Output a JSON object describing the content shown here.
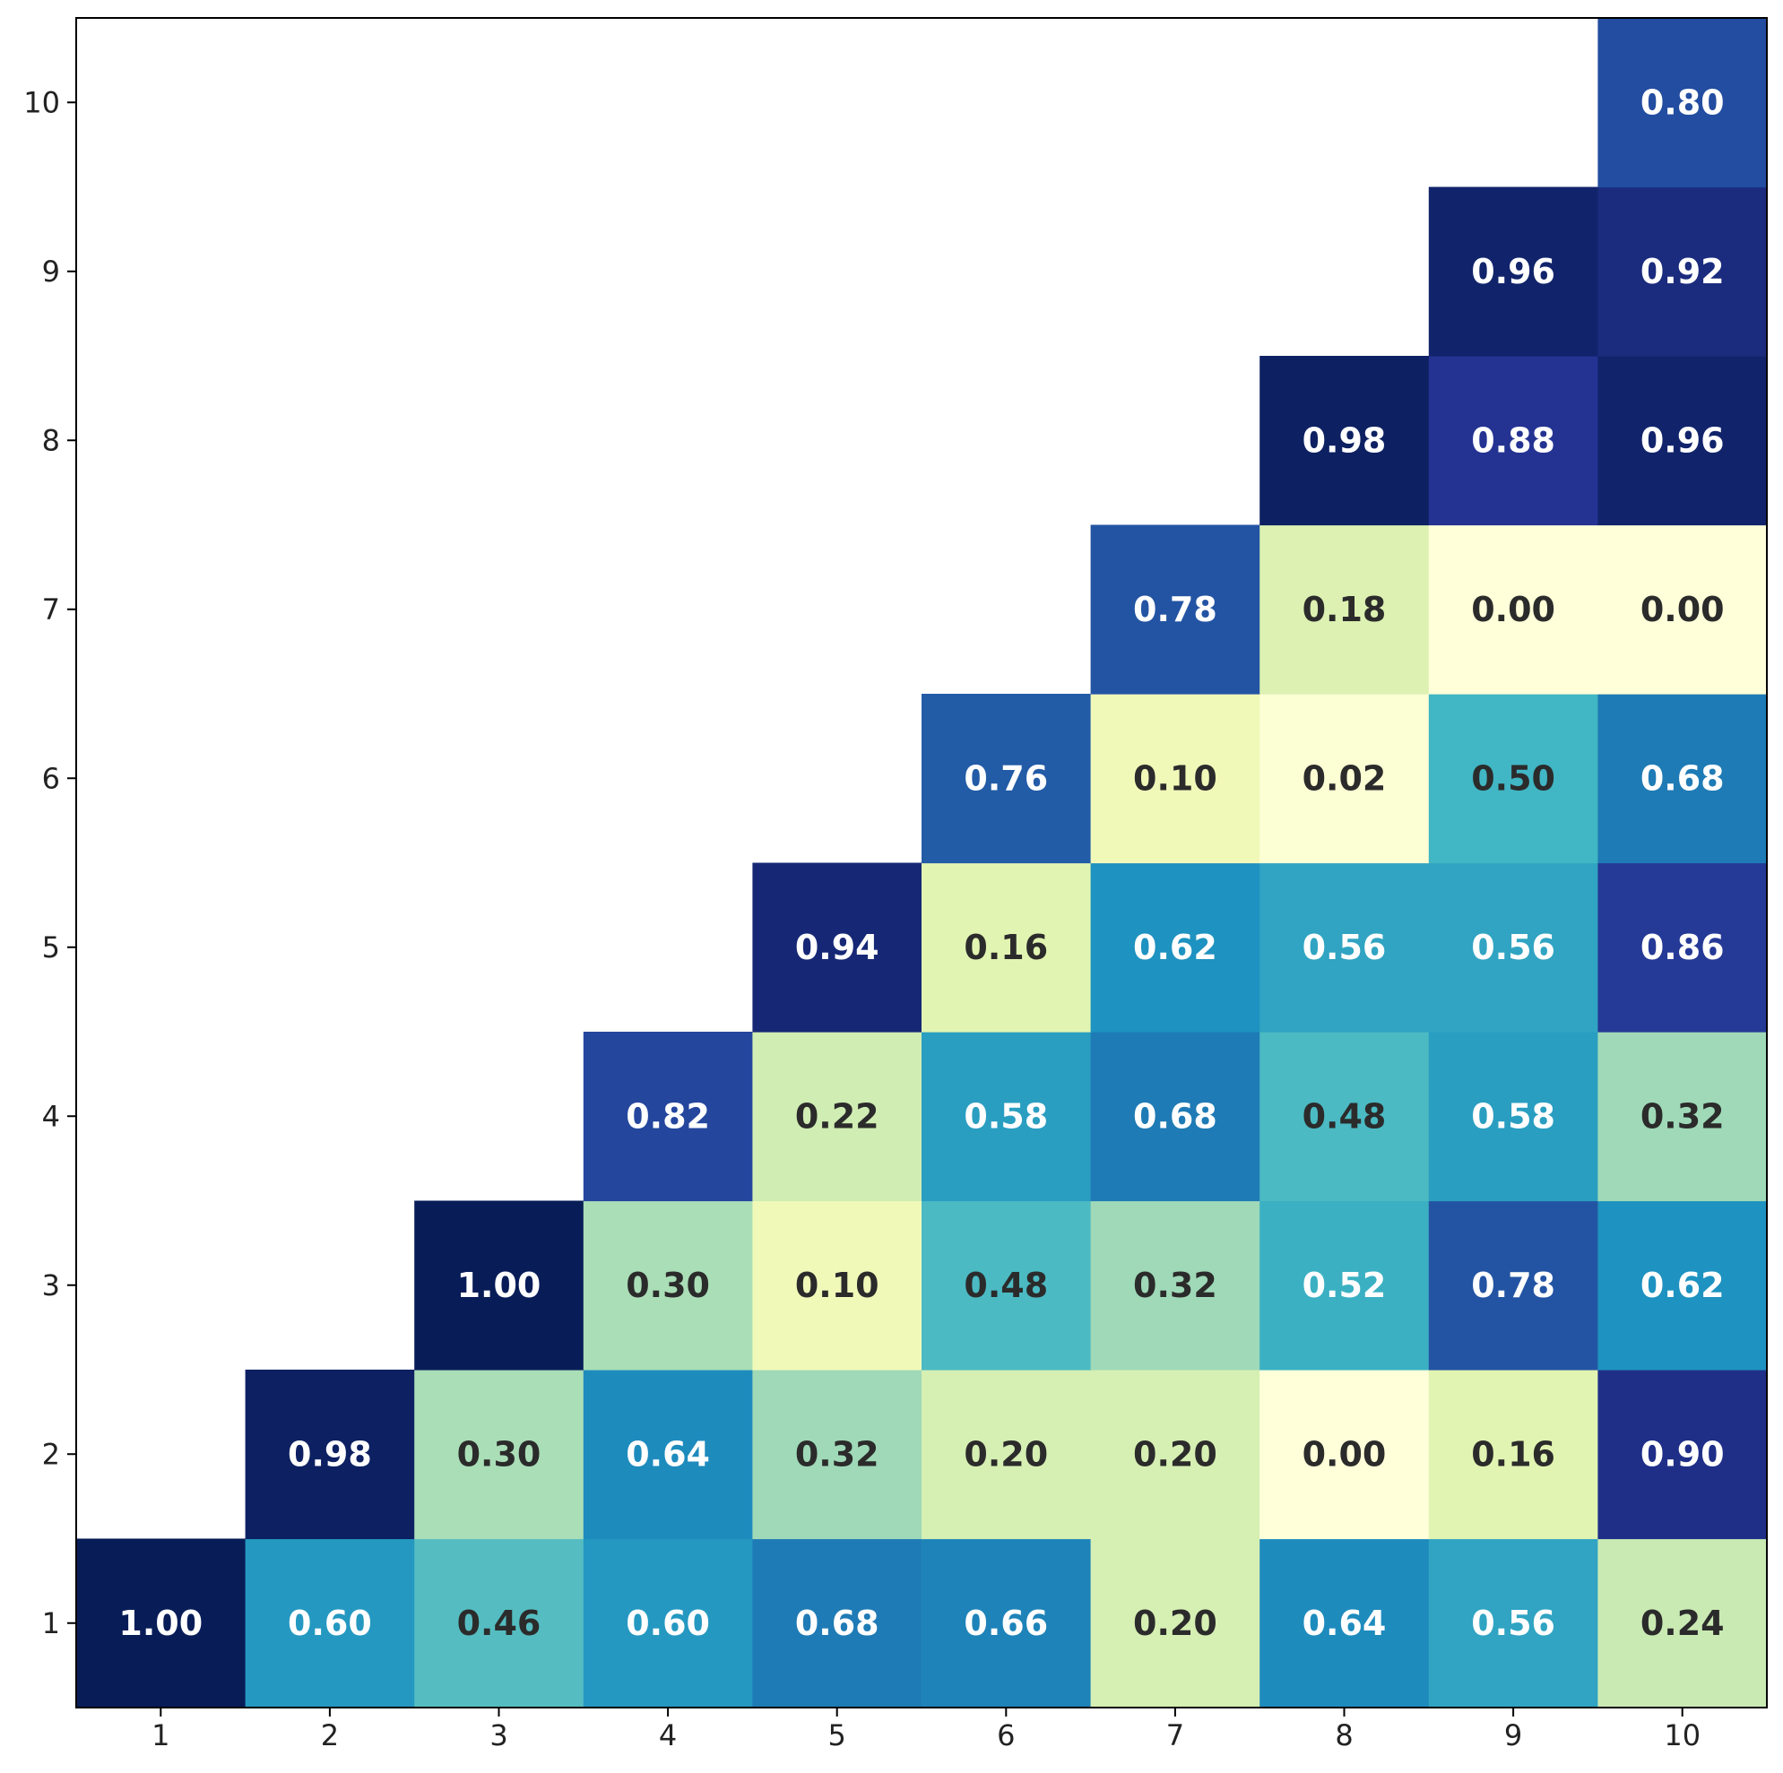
{
  "chart_data": {
    "type": "heatmap",
    "x_ticks": [
      "1",
      "2",
      "3",
      "4",
      "5",
      "6",
      "7",
      "8",
      "9",
      "10"
    ],
    "y_ticks": [
      "1",
      "2",
      "3",
      "4",
      "5",
      "6",
      "7",
      "8",
      "9",
      "10"
    ],
    "xlim": [
      0.5,
      10.5
    ],
    "ylim": [
      0.5,
      10.5
    ],
    "colormap": "YlGnBu",
    "vmin": 0,
    "vmax": 1,
    "grid": false,
    "colors": {
      "dark_text": "#2b2b2b",
      "light_text": "#ffffff",
      "frame": "#000000"
    },
    "cells": [
      {
        "x": 1,
        "y": 1,
        "value": 1.0,
        "label": "1.00"
      },
      {
        "x": 2,
        "y": 1,
        "value": 0.6,
        "label": "0.60"
      },
      {
        "x": 3,
        "y": 1,
        "value": 0.46,
        "label": "0.46"
      },
      {
        "x": 4,
        "y": 1,
        "value": 0.6,
        "label": "0.60"
      },
      {
        "x": 5,
        "y": 1,
        "value": 0.68,
        "label": "0.68"
      },
      {
        "x": 6,
        "y": 1,
        "value": 0.66,
        "label": "0.66"
      },
      {
        "x": 7,
        "y": 1,
        "value": 0.2,
        "label": "0.20"
      },
      {
        "x": 8,
        "y": 1,
        "value": 0.64,
        "label": "0.64"
      },
      {
        "x": 9,
        "y": 1,
        "value": 0.56,
        "label": "0.56"
      },
      {
        "x": 10,
        "y": 1,
        "value": 0.24,
        "label": "0.24"
      },
      {
        "x": 2,
        "y": 2,
        "value": 0.98,
        "label": "0.98"
      },
      {
        "x": 3,
        "y": 2,
        "value": 0.3,
        "label": "0.30"
      },
      {
        "x": 4,
        "y": 2,
        "value": 0.64,
        "label": "0.64"
      },
      {
        "x": 5,
        "y": 2,
        "value": 0.32,
        "label": "0.32"
      },
      {
        "x": 6,
        "y": 2,
        "value": 0.2,
        "label": "0.20"
      },
      {
        "x": 7,
        "y": 2,
        "value": 0.2,
        "label": "0.20"
      },
      {
        "x": 8,
        "y": 2,
        "value": 0.0,
        "label": "0.00"
      },
      {
        "x": 9,
        "y": 2,
        "value": 0.16,
        "label": "0.16"
      },
      {
        "x": 10,
        "y": 2,
        "value": 0.9,
        "label": "0.90"
      },
      {
        "x": 3,
        "y": 3,
        "value": 1.0,
        "label": "1.00"
      },
      {
        "x": 4,
        "y": 3,
        "value": 0.3,
        "label": "0.30"
      },
      {
        "x": 5,
        "y": 3,
        "value": 0.1,
        "label": "0.10"
      },
      {
        "x": 6,
        "y": 3,
        "value": 0.48,
        "label": "0.48"
      },
      {
        "x": 7,
        "y": 3,
        "value": 0.32,
        "label": "0.32"
      },
      {
        "x": 8,
        "y": 3,
        "value": 0.52,
        "label": "0.52"
      },
      {
        "x": 9,
        "y": 3,
        "value": 0.78,
        "label": "0.78"
      },
      {
        "x": 10,
        "y": 3,
        "value": 0.62,
        "label": "0.62"
      },
      {
        "x": 4,
        "y": 4,
        "value": 0.82,
        "label": "0.82"
      },
      {
        "x": 5,
        "y": 4,
        "value": 0.22,
        "label": "0.22"
      },
      {
        "x": 6,
        "y": 4,
        "value": 0.58,
        "label": "0.58"
      },
      {
        "x": 7,
        "y": 4,
        "value": 0.68,
        "label": "0.68"
      },
      {
        "x": 8,
        "y": 4,
        "value": 0.48,
        "label": "0.48"
      },
      {
        "x": 9,
        "y": 4,
        "value": 0.58,
        "label": "0.58"
      },
      {
        "x": 10,
        "y": 4,
        "value": 0.32,
        "label": "0.32"
      },
      {
        "x": 5,
        "y": 5,
        "value": 0.94,
        "label": "0.94"
      },
      {
        "x": 6,
        "y": 5,
        "value": 0.16,
        "label": "0.16"
      },
      {
        "x": 7,
        "y": 5,
        "value": 0.62,
        "label": "0.62"
      },
      {
        "x": 8,
        "y": 5,
        "value": 0.56,
        "label": "0.56"
      },
      {
        "x": 9,
        "y": 5,
        "value": 0.56,
        "label": "0.56"
      },
      {
        "x": 10,
        "y": 5,
        "value": 0.86,
        "label": "0.86"
      },
      {
        "x": 6,
        "y": 6,
        "value": 0.76,
        "label": "0.76"
      },
      {
        "x": 7,
        "y": 6,
        "value": 0.1,
        "label": "0.10"
      },
      {
        "x": 8,
        "y": 6,
        "value": 0.02,
        "label": "0.02"
      },
      {
        "x": 9,
        "y": 6,
        "value": 0.5,
        "label": "0.50"
      },
      {
        "x": 10,
        "y": 6,
        "value": 0.68,
        "label": "0.68"
      },
      {
        "x": 7,
        "y": 7,
        "value": 0.78,
        "label": "0.78"
      },
      {
        "x": 8,
        "y": 7,
        "value": 0.18,
        "label": "0.18"
      },
      {
        "x": 9,
        "y": 7,
        "value": 0.0,
        "label": "0.00"
      },
      {
        "x": 10,
        "y": 7,
        "value": 0.0,
        "label": "0.00"
      },
      {
        "x": 8,
        "y": 8,
        "value": 0.98,
        "label": "0.98"
      },
      {
        "x": 9,
        "y": 8,
        "value": 0.88,
        "label": "0.88"
      },
      {
        "x": 10,
        "y": 8,
        "value": 0.96,
        "label": "0.96"
      },
      {
        "x": 9,
        "y": 9,
        "value": 0.96,
        "label": "0.96"
      },
      {
        "x": 10,
        "y": 9,
        "value": 0.92,
        "label": "0.92"
      },
      {
        "x": 10,
        "y": 10,
        "value": 0.8,
        "label": "0.80"
      }
    ]
  }
}
